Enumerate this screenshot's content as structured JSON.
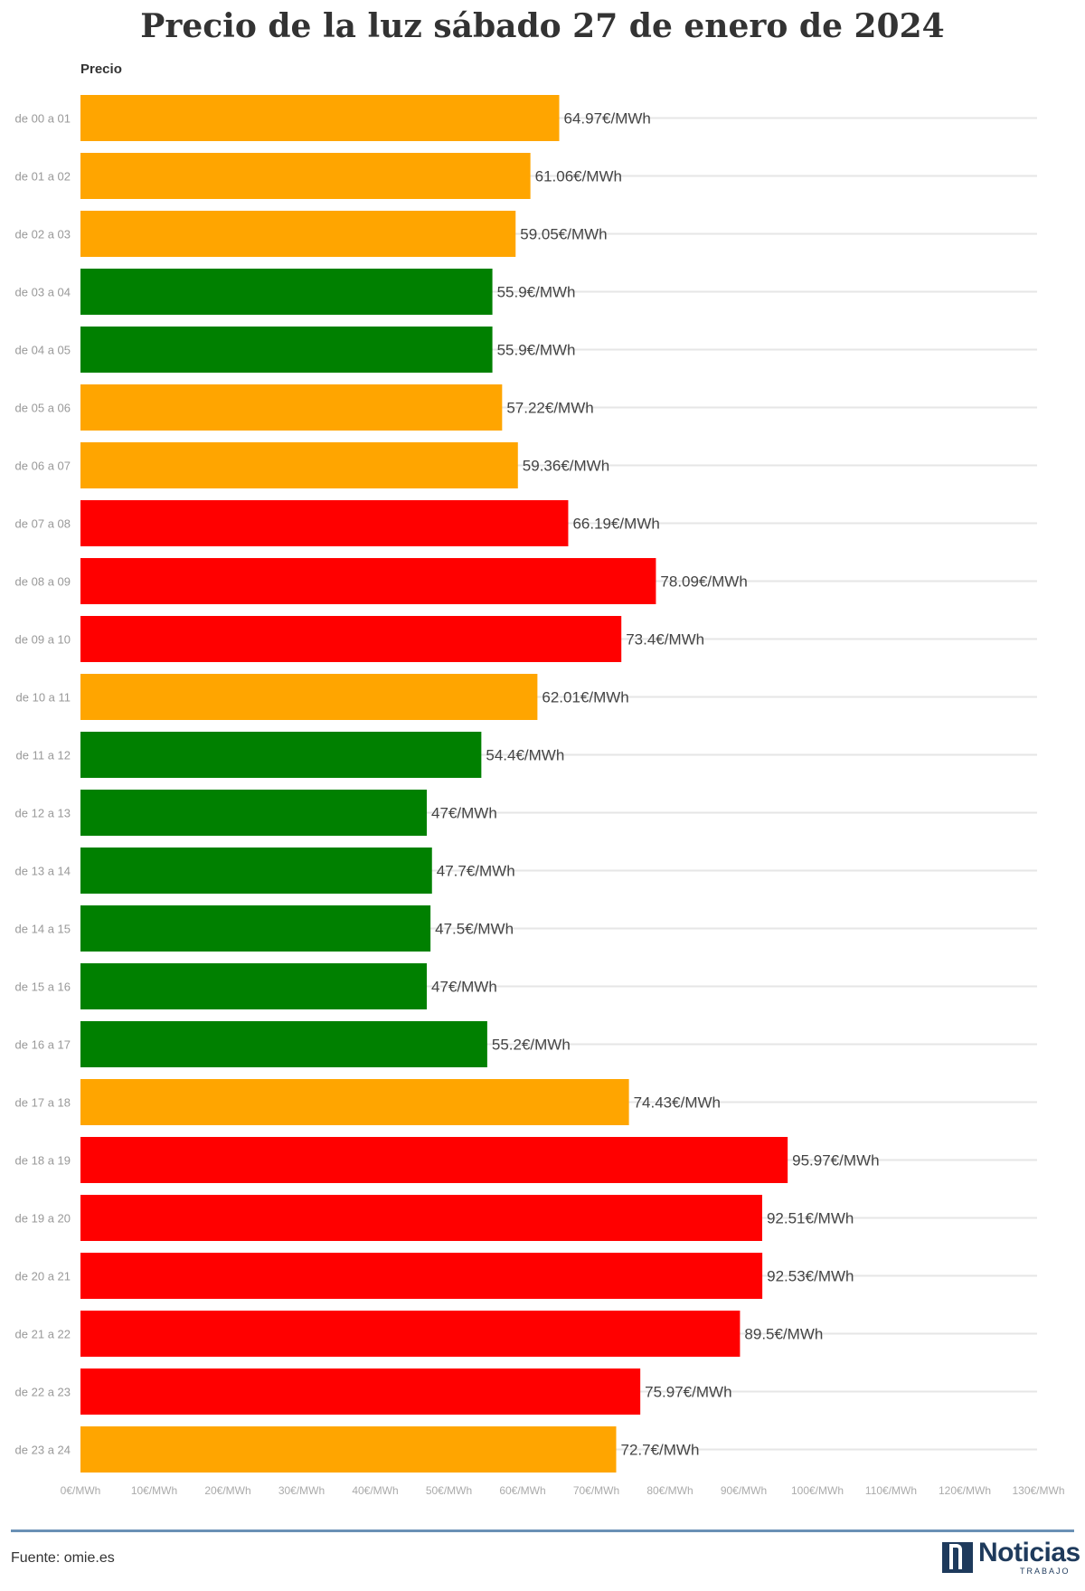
{
  "chart_data": {
    "type": "bar",
    "orientation": "horizontal",
    "title": "Precio de la luz sábado 27 de enero de 2024",
    "column_header": "Precio",
    "categories": [
      "de 00 a 01",
      "de 01 a 02",
      "de 02 a 03",
      "de 03 a 04",
      "de 04 a 05",
      "de 05 a 06",
      "de 06 a 07",
      "de 07 a 08",
      "de 08 a 09",
      "de 09 a 10",
      "de 10 a 11",
      "de 11 a 12",
      "de 12 a 13",
      "de 13 a 14",
      "de 14 a 15",
      "de 15 a 16",
      "de 16 a 17",
      "de 17 a 18",
      "de 18 a 19",
      "de 19 a 20",
      "de 20 a 21",
      "de 21 a 22",
      "de 22 a 23",
      "de 23 a 24"
    ],
    "values": [
      64.97,
      61.06,
      59.05,
      55.9,
      55.9,
      57.22,
      59.36,
      66.19,
      78.09,
      73.4,
      62.01,
      54.4,
      47,
      47.7,
      47.5,
      47,
      55.2,
      74.43,
      95.97,
      92.51,
      92.53,
      89.5,
      75.97,
      72.7
    ],
    "value_labels": [
      "64.97€/MWh",
      "61.06€/MWh",
      "59.05€/MWh",
      "55.9€/MWh",
      "55.9€/MWh",
      "57.22€/MWh",
      "59.36€/MWh",
      "66.19€/MWh",
      "78.09€/MWh",
      "73.4€/MWh",
      "62.01€/MWh",
      "54.4€/MWh",
      "47€/MWh",
      "47.7€/MWh",
      "47.5€/MWh",
      "47€/MWh",
      "55.2€/MWh",
      "74.43€/MWh",
      "95.97€/MWh",
      "92.51€/MWh",
      "92.53€/MWh",
      "89.5€/MWh",
      "75.97€/MWh",
      "72.7€/MWh"
    ],
    "bar_colors": [
      "orange",
      "orange",
      "orange",
      "green",
      "green",
      "orange",
      "orange",
      "red",
      "red",
      "red",
      "orange",
      "green",
      "green",
      "green",
      "green",
      "green",
      "green",
      "orange",
      "red",
      "red",
      "red",
      "red",
      "red",
      "orange"
    ],
    "palette": {
      "orange": "#ffa500",
      "green": "#008000",
      "red": "#ff0000"
    },
    "xlim": [
      0,
      130
    ],
    "xticks": [
      "0€/MWh",
      "10€/MWh",
      "20€/MWh",
      "30€/MWh",
      "40€/MWh",
      "50€/MWh",
      "60€/MWh",
      "70€/MWh",
      "80€/MWh",
      "90€/MWh",
      "100€/MWh",
      "110€/MWh",
      "120€/MWh",
      "130€/MWh"
    ],
    "grid": true
  },
  "footer": {
    "source": "Fuente: omie.es",
    "logo_text": "Noticias",
    "logo_sub": "TRABAJO"
  }
}
